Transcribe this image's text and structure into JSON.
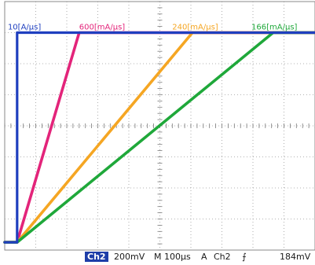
{
  "chart_data": {
    "type": "line",
    "x_unit": "µs",
    "y_unit": "mV",
    "xlim": [
      0,
      1000
    ],
    "ylim": [
      -800,
      800
    ],
    "grid": true,
    "series": [
      {
        "name": "10[A/µs]",
        "color": "#1f3fbf",
        "x": [
          0,
          40,
          40,
          1000
        ],
        "y": [
          -750,
          -750,
          600,
          600
        ],
        "label_pos": [
          10,
          620
        ]
      },
      {
        "name": "600[mA/µs]",
        "color": "#e3247a",
        "x": [
          0,
          40,
          240,
          1000
        ],
        "y": [
          -750,
          -750,
          600,
          600
        ],
        "label_pos": [
          240,
          620
        ]
      },
      {
        "name": "240[mA/µs]",
        "color": "#f5a623",
        "x": [
          0,
          40,
          605,
          1000
        ],
        "y": [
          -750,
          -750,
          600,
          600
        ],
        "label_pos": [
          540,
          620
        ]
      },
      {
        "name": "166[mA/µs]",
        "color": "#1fa83a",
        "x": [
          0,
          40,
          865,
          1000
        ],
        "y": [
          -750,
          -750,
          600,
          600
        ],
        "label_pos": [
          795,
          620
        ]
      }
    ]
  },
  "status_bar": {
    "channel": "Ch2",
    "volts_div": "200mV",
    "timebase": "M 100µs",
    "trigger_mode": "A",
    "trigger_channel": "Ch2",
    "trigger_slope": "⨍",
    "trigger_level": "184mV",
    "channel_color": "#1e3ea8"
  }
}
